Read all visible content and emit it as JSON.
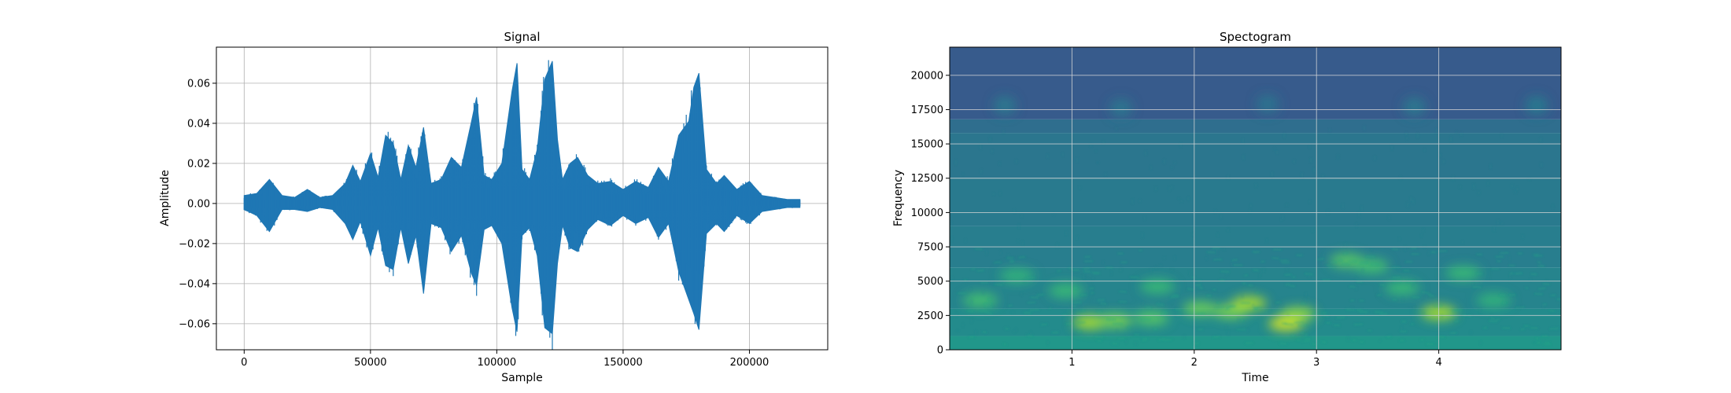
{
  "chart_data": [
    {
      "type": "line",
      "title": "Signal",
      "xlabel": "Sample",
      "ylabel": "Amplitude",
      "xlim": [
        -11000,
        231000
      ],
      "ylim": [
        -0.073,
        0.078
      ],
      "grid": true,
      "color": "#1f77b4",
      "xticks": [
        0,
        50000,
        100000,
        150000,
        200000
      ],
      "xtick_labels": [
        "0",
        "50000",
        "100000",
        "150000",
        "200000"
      ],
      "yticks": [
        -0.06,
        -0.04,
        -0.02,
        0.0,
        0.02,
        0.04,
        0.06
      ],
      "ytick_labels": [
        "−0.06",
        "−0.04",
        "−0.02",
        "0.00",
        "0.02",
        "0.04",
        "0.06"
      ],
      "envelope": {
        "x": [
          0,
          5000,
          10000,
          15000,
          20000,
          25000,
          30000,
          35000,
          40000,
          43000,
          46000,
          50000,
          53000,
          56000,
          59000,
          62000,
          65000,
          68000,
          71000,
          74000,
          78000,
          82000,
          86000,
          90000,
          92000,
          95000,
          98000,
          102000,
          106000,
          108000,
          110000,
          113000,
          116000,
          119000,
          122000,
          124000,
          126000,
          129000,
          132000,
          136000,
          140000,
          145000,
          150000,
          155000,
          160000,
          164000,
          168000,
          172000,
          176000,
          178000,
          180000,
          183000,
          187000,
          190000,
          195000,
          200000,
          205000,
          210000,
          215000,
          220000
        ],
        "upper": [
          0.004,
          0.005,
          0.012,
          0.004,
          0.003,
          0.007,
          0.003,
          0.004,
          0.01,
          0.019,
          0.011,
          0.025,
          0.013,
          0.034,
          0.03,
          0.012,
          0.029,
          0.018,
          0.038,
          0.01,
          0.012,
          0.023,
          0.018,
          0.041,
          0.053,
          0.014,
          0.012,
          0.02,
          0.056,
          0.07,
          0.017,
          0.012,
          0.027,
          0.062,
          0.071,
          0.032,
          0.012,
          0.02,
          0.023,
          0.014,
          0.01,
          0.011,
          0.007,
          0.011,
          0.008,
          0.018,
          0.011,
          0.034,
          0.041,
          0.058,
          0.065,
          0.017,
          0.01,
          0.014,
          0.007,
          0.011,
          0.004,
          0.003,
          0.002,
          0.002
        ],
        "lower": [
          -0.003,
          -0.006,
          -0.014,
          -0.003,
          -0.003,
          -0.004,
          -0.002,
          -0.003,
          -0.01,
          -0.018,
          -0.009,
          -0.026,
          -0.012,
          -0.031,
          -0.033,
          -0.012,
          -0.03,
          -0.016,
          -0.045,
          -0.01,
          -0.012,
          -0.024,
          -0.016,
          -0.035,
          -0.041,
          -0.013,
          -0.011,
          -0.02,
          -0.052,
          -0.064,
          -0.016,
          -0.012,
          -0.026,
          -0.062,
          -0.065,
          -0.03,
          -0.011,
          -0.022,
          -0.024,
          -0.013,
          -0.008,
          -0.011,
          -0.006,
          -0.01,
          -0.007,
          -0.017,
          -0.01,
          -0.034,
          -0.048,
          -0.055,
          -0.063,
          -0.015,
          -0.01,
          -0.014,
          -0.006,
          -0.01,
          -0.004,
          -0.003,
          -0.002,
          -0.002
        ]
      }
    },
    {
      "type": "heatmap",
      "title": "Spectogram",
      "xlabel": "Time",
      "ylabel": "Frequency",
      "xlim": [
        0,
        5.0
      ],
      "ylim": [
        0,
        22050
      ],
      "grid": true,
      "colormap": "viridis",
      "xticks": [
        1,
        2,
        3,
        4
      ],
      "xtick_labels": [
        "1",
        "2",
        "3",
        "4"
      ],
      "yticks": [
        0,
        2500,
        5000,
        7500,
        10000,
        12500,
        15000,
        17500,
        20000
      ],
      "ytick_labels": [
        "0",
        "2500",
        "5000",
        "7500",
        "10000",
        "12500",
        "15000",
        "17500",
        "20000"
      ],
      "background": [
        {
          "f0": 0,
          "f1": 1000,
          "level": 0.66
        },
        {
          "f0": 1000,
          "f1": 3000,
          "level": 0.6
        },
        {
          "f0": 3000,
          "f1": 6000,
          "level": 0.56
        },
        {
          "f0": 6000,
          "f1": 9000,
          "level": 0.53
        },
        {
          "f0": 9000,
          "f1": 12500,
          "level": 0.51
        },
        {
          "f0": 12500,
          "f1": 15800,
          "level": 0.49
        },
        {
          "f0": 15800,
          "f1": 16800,
          "level": 0.45
        },
        {
          "f0": 16800,
          "f1": 22050,
          "level": 0.36
        }
      ],
      "blobs": [
        {
          "t": 0.25,
          "f": 3600,
          "level": 0.82
        },
        {
          "t": 0.55,
          "f": 5400,
          "level": 0.78
        },
        {
          "t": 0.95,
          "f": 4300,
          "level": 0.8
        },
        {
          "t": 1.15,
          "f": 2000,
          "level": 0.92
        },
        {
          "t": 1.35,
          "f": 2100,
          "level": 0.88
        },
        {
          "t": 1.65,
          "f": 2300,
          "level": 0.84
        },
        {
          "t": 1.7,
          "f": 4600,
          "level": 0.8
        },
        {
          "t": 2.05,
          "f": 3000,
          "level": 0.86
        },
        {
          "t": 2.3,
          "f": 2800,
          "level": 0.88
        },
        {
          "t": 2.45,
          "f": 3400,
          "level": 0.92
        },
        {
          "t": 2.75,
          "f": 1900,
          "level": 0.96
        },
        {
          "t": 2.85,
          "f": 2600,
          "level": 0.9
        },
        {
          "t": 3.25,
          "f": 6500,
          "level": 0.84
        },
        {
          "t": 3.45,
          "f": 6100,
          "level": 0.82
        },
        {
          "t": 3.7,
          "f": 4500,
          "level": 0.8
        },
        {
          "t": 4.0,
          "f": 2700,
          "level": 0.92
        },
        {
          "t": 4.2,
          "f": 5600,
          "level": 0.8
        },
        {
          "t": 4.45,
          "f": 3600,
          "level": 0.78
        },
        {
          "t": 0.45,
          "f": 17800,
          "level": 0.5
        },
        {
          "t": 1.4,
          "f": 17600,
          "level": 0.49
        },
        {
          "t": 2.6,
          "f": 17900,
          "level": 0.48
        },
        {
          "t": 3.8,
          "f": 17700,
          "level": 0.5
        },
        {
          "t": 4.8,
          "f": 17800,
          "level": 0.51
        }
      ]
    }
  ]
}
